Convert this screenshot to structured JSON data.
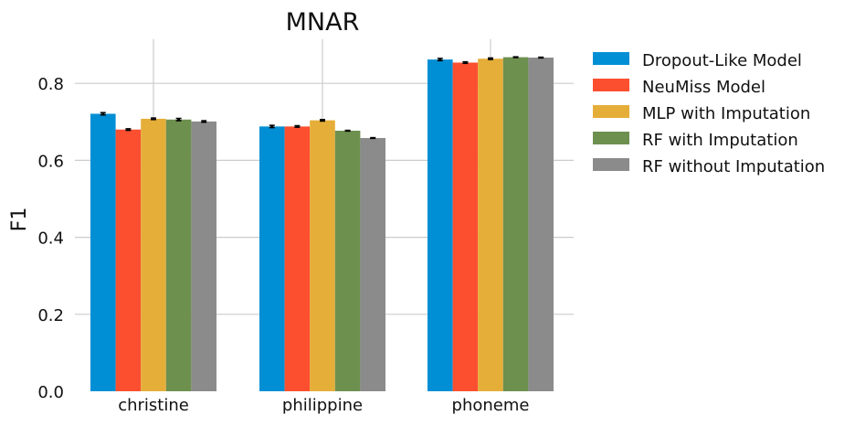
{
  "chart_data": {
    "type": "bar",
    "title": "MNAR",
    "xlabel": "",
    "ylabel": "F1",
    "categories": [
      "christine",
      "philippine",
      "phoneme"
    ],
    "yticks": [
      "0.0",
      "0.2",
      "0.4",
      "0.6",
      "0.8"
    ],
    "ylim": [
      0,
      0.915
    ],
    "grid": true,
    "legend_position": "right",
    "series": [
      {
        "name": "Dropout-Like Model",
        "color": "#008FD5",
        "values": [
          0.721,
          0.688,
          0.862
        ],
        "errors": [
          0.003,
          0.003,
          0.003
        ]
      },
      {
        "name": "NeuMiss Model",
        "color": "#FC4F30",
        "values": [
          0.68,
          0.688,
          0.854
        ],
        "errors": [
          0.002,
          0.002,
          0.002
        ]
      },
      {
        "name": "MLP with Imputation",
        "color": "#E5AE38",
        "values": [
          0.708,
          0.704,
          0.864
        ],
        "errors": [
          0.002,
          0.002,
          0.002
        ]
      },
      {
        "name": "RF with Imputation",
        "color": "#6D904F",
        "values": [
          0.706,
          0.677,
          0.868
        ],
        "errors": [
          0.003,
          0.001,
          0.001
        ]
      },
      {
        "name": "RF without Imputation",
        "color": "#8B8B8B",
        "values": [
          0.701,
          0.658,
          0.867
        ],
        "errors": [
          0.002,
          0.001,
          0.001
        ]
      }
    ]
  }
}
